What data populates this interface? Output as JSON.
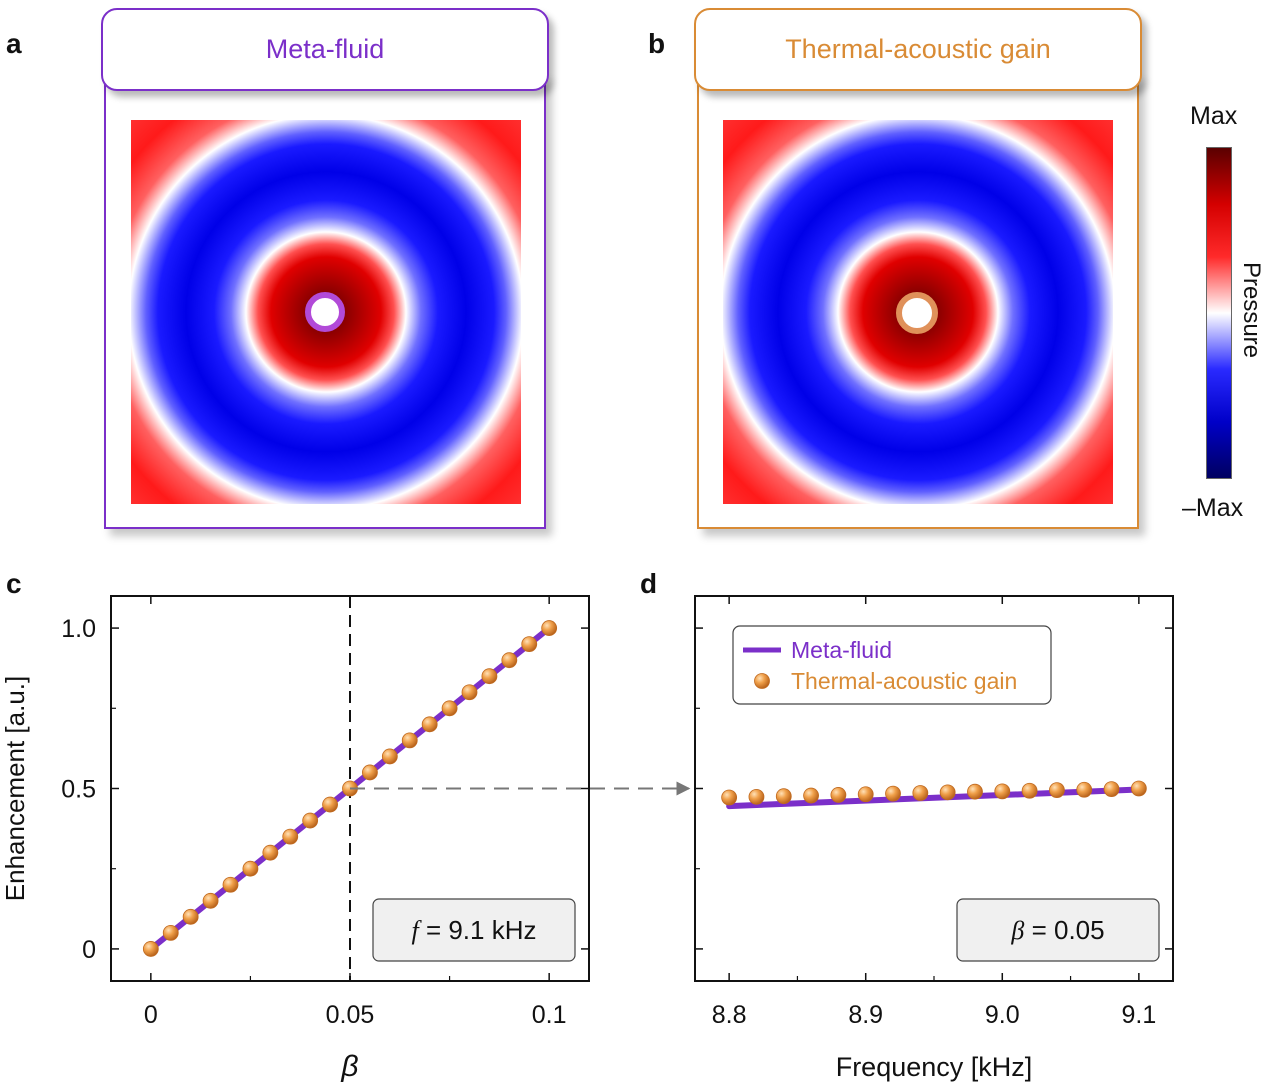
{
  "panels": {
    "a": {
      "letter": "a",
      "title": "Meta-fluid",
      "color": "#7b2fc9"
    },
    "b": {
      "letter": "b",
      "title": "Thermal-acoustic gain",
      "color": "#d98b35"
    },
    "c": {
      "letter": "c"
    },
    "d": {
      "letter": "d"
    }
  },
  "colorbar": {
    "max_label": "Max",
    "min_label": "–Max",
    "title": "Pressure",
    "colors": [
      "#5a0000",
      "#d40000",
      "#ff2a2a",
      "#ffffff",
      "#2a2aff",
      "#0000c8",
      "#000060"
    ]
  },
  "chart_data": [
    {
      "type": "line",
      "panel": "c",
      "xlabel": "β",
      "ylabel": "Enhancement [a.u.]",
      "xlim": [
        -0.01,
        0.11
      ],
      "ylim": [
        -0.1,
        1.1
      ],
      "xticks": [
        0,
        0.05,
        0.1
      ],
      "xtick_labels": [
        "0",
        "0.05",
        "0.1"
      ],
      "yticks": [
        0,
        0.5,
        1.0
      ],
      "ytick_labels": [
        "0",
        "0.5",
        "1.0"
      ],
      "vline_x": 0.05,
      "annotation": {
        "italic": "f",
        "text": " = 9.1 kHz"
      },
      "series": [
        {
          "name": "Meta-fluid",
          "style": "line",
          "color": "#7b2fc9",
          "x": [
            0,
            0.1
          ],
          "y": [
            0,
            1.0
          ]
        },
        {
          "name": "Thermal-acoustic gain",
          "style": "points",
          "color": "#e08a2e",
          "x": [
            0,
            0.005,
            0.01,
            0.015,
            0.02,
            0.025,
            0.03,
            0.035,
            0.04,
            0.045,
            0.05,
            0.055,
            0.06,
            0.065,
            0.07,
            0.075,
            0.08,
            0.085,
            0.09,
            0.095,
            0.1
          ],
          "y": [
            0,
            0.05,
            0.1,
            0.15,
            0.2,
            0.25,
            0.3,
            0.35,
            0.4,
            0.45,
            0.5,
            0.55,
            0.6,
            0.65,
            0.7,
            0.75,
            0.8,
            0.85,
            0.9,
            0.95,
            1.0
          ]
        }
      ]
    },
    {
      "type": "line",
      "panel": "d",
      "xlabel": "Frequency [kHz]",
      "ylabel": "",
      "xlim": [
        8.775,
        9.125
      ],
      "ylim": [
        -0.1,
        1.1
      ],
      "xticks": [
        8.8,
        8.9,
        9.0,
        9.1
      ],
      "xtick_labels": [
        "8.8",
        "8.9",
        "9.0",
        "9.1"
      ],
      "yticks": [
        0,
        0.5,
        1.0
      ],
      "annotation": {
        "italic": "β",
        "text": " = 0.05"
      },
      "legend": [
        "Meta-fluid",
        "Thermal-acoustic gain"
      ],
      "series": [
        {
          "name": "Meta-fluid",
          "style": "line",
          "color": "#7b2fc9",
          "x": [
            8.8,
            9.1
          ],
          "y": [
            0.445,
            0.497
          ]
        },
        {
          "name": "Thermal-acoustic gain",
          "style": "points",
          "color": "#e08a2e",
          "x": [
            8.8,
            8.82,
            8.84,
            8.86,
            8.88,
            8.9,
            8.92,
            8.94,
            8.96,
            8.98,
            9.0,
            9.02,
            9.04,
            9.06,
            9.08,
            9.1
          ],
          "y": [
            0.472,
            0.474,
            0.476,
            0.478,
            0.48,
            0.482,
            0.484,
            0.486,
            0.488,
            0.49,
            0.491,
            0.493,
            0.495,
            0.496,
            0.498,
            0.5
          ]
        }
      ]
    }
  ]
}
